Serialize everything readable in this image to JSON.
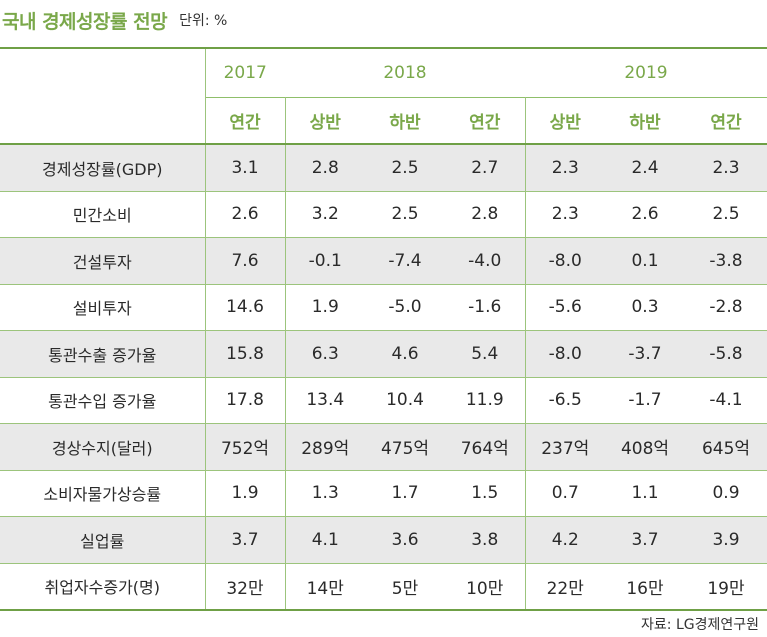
{
  "title": "국내 경제성장률 전망",
  "unit": "단위: %",
  "years": [
    "2017",
    "2018",
    "2019"
  ],
  "halves": [
    "연간",
    "상반",
    "하반",
    "연간",
    "상반",
    "하반",
    "연간"
  ],
  "rows": [
    {
      "label": "경제성장률(GDP)",
      "values": [
        "3.1",
        "2.8",
        "2.5",
        "2.7",
        "2.3",
        "2.4",
        "2.3"
      ]
    },
    {
      "label": "민간소비",
      "values": [
        "2.6",
        "3.2",
        "2.5",
        "2.8",
        "2.3",
        "2.6",
        "2.5"
      ]
    },
    {
      "label": "건설투자",
      "values": [
        "7.6",
        "-0.1",
        "-7.4",
        "-4.0",
        "-8.0",
        "0.1",
        "-3.8"
      ]
    },
    {
      "label": "설비투자",
      "values": [
        "14.6",
        "1.9",
        "-5.0",
        "-1.6",
        "-5.6",
        "0.3",
        "-2.8"
      ]
    },
    {
      "label": "통관수출 증가율",
      "values": [
        "15.8",
        "6.3",
        "4.6",
        "5.4",
        "-8.0",
        "-3.7",
        "-5.8"
      ]
    },
    {
      "label": "통관수입 증가율",
      "values": [
        "17.8",
        "13.4",
        "10.4",
        "11.9",
        "-6.5",
        "-1.7",
        "-4.1"
      ]
    },
    {
      "label": "경상수지(달러)",
      "values": [
        "752억",
        "289억",
        "475억",
        "764억",
        "237억",
        "408억",
        "645억"
      ]
    },
    {
      "label": "소비자물가상승률",
      "values": [
        "1.9",
        "1.3",
        "1.7",
        "1.5",
        "0.7",
        "1.1",
        "0.9"
      ]
    },
    {
      "label": "실업률",
      "values": [
        "3.7",
        "4.1",
        "3.6",
        "3.8",
        "4.2",
        "3.7",
        "3.9"
      ]
    },
    {
      "label": "취업자수증가(명)",
      "values": [
        "32만",
        "14만",
        "5만",
        "10만",
        "22만",
        "16만",
        "19만"
      ]
    }
  ],
  "source": "자료: LG경제연구원",
  "colors": {
    "accent": "#7aa84a",
    "rule": "#6fa046",
    "shade": "#e9e9e9"
  }
}
